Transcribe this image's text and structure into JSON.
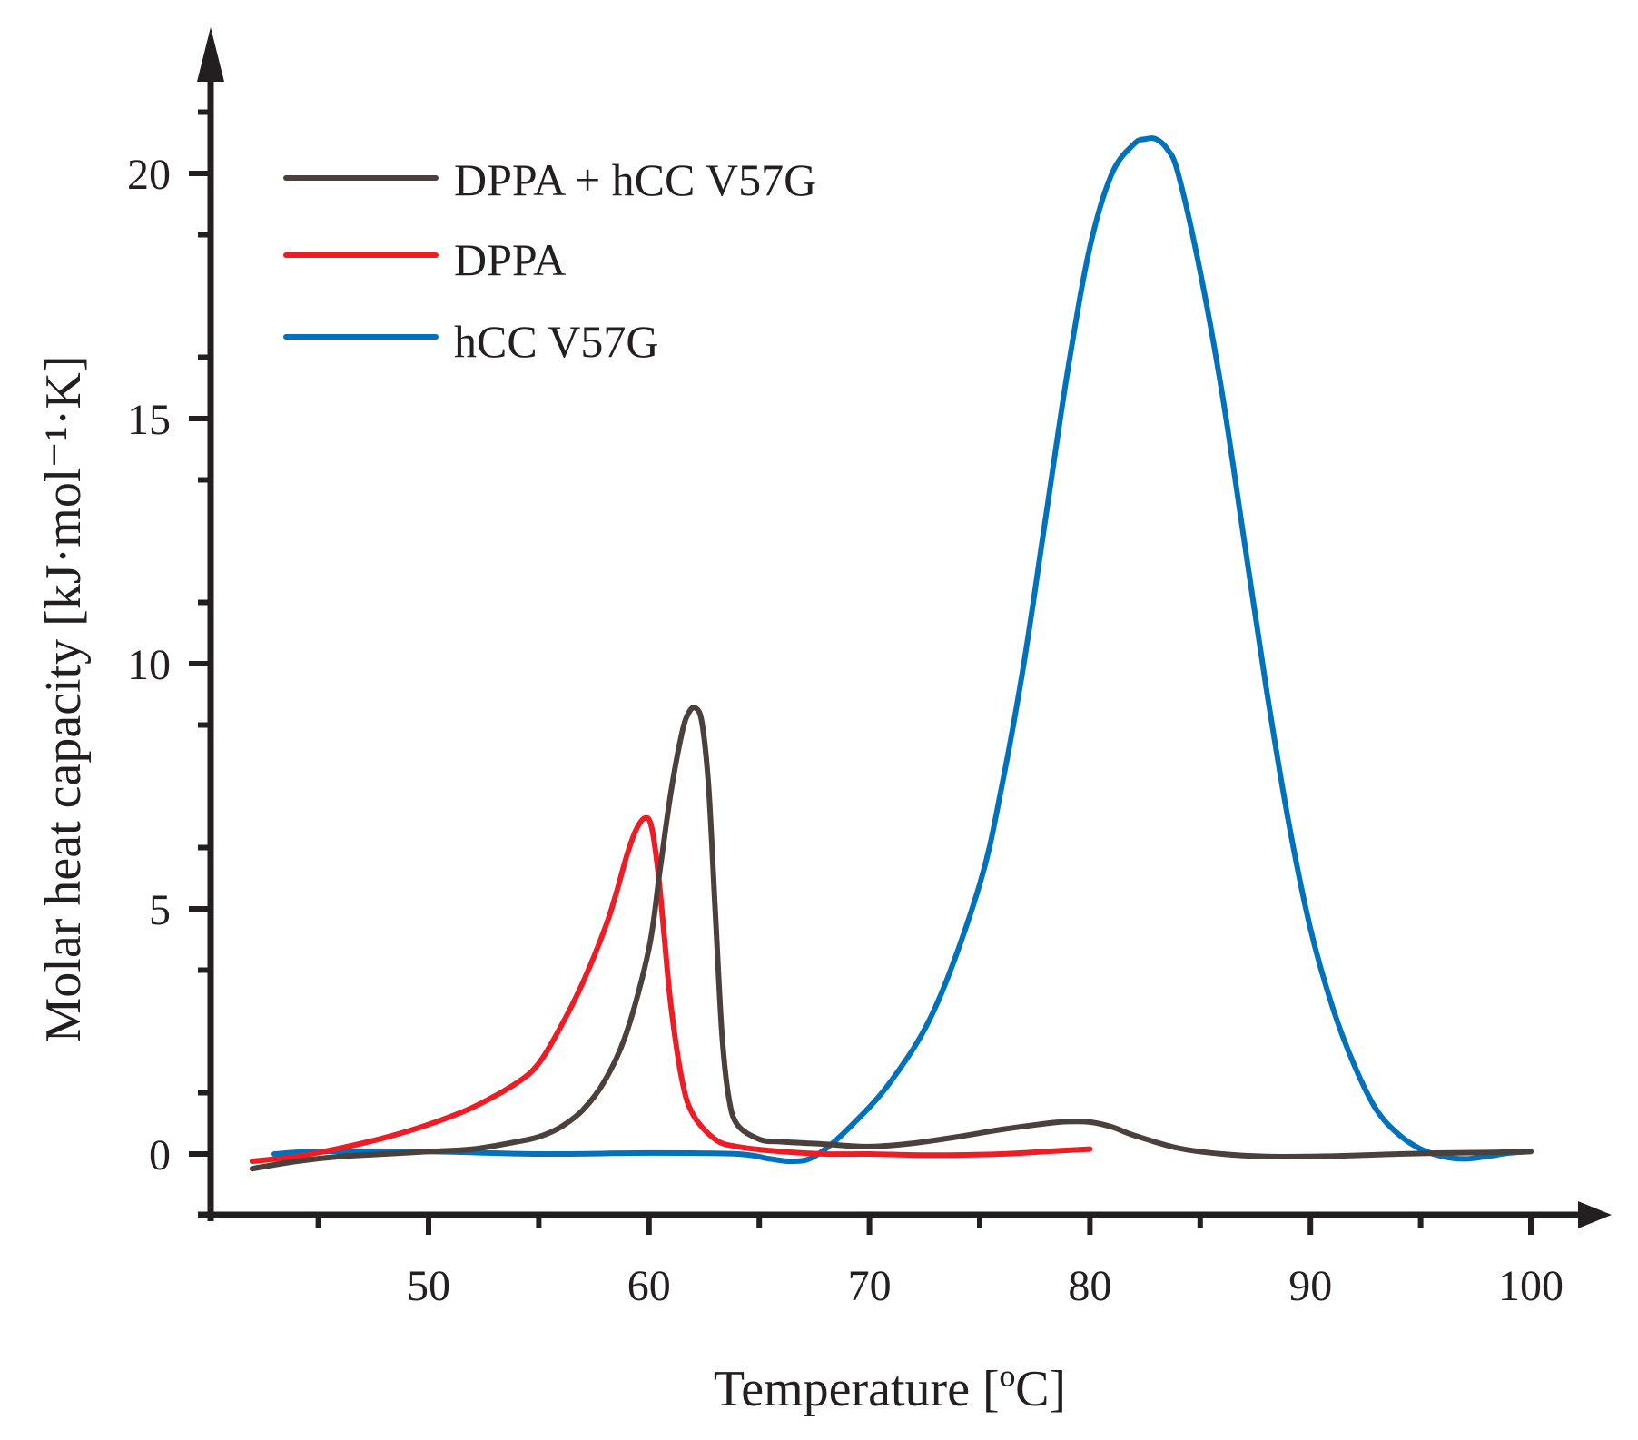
{
  "chart_data": {
    "type": "line",
    "title": "",
    "xlabel": "Temperature [ºC]",
    "ylabel": "Molar heat capacity [kJ·mol⁻¹·K]",
    "xlim": [
      40,
      103
    ],
    "ylim": [
      -1.3,
      23
    ],
    "x_ticks": [
      50,
      60,
      70,
      80,
      90,
      100
    ],
    "y_ticks": [
      0,
      5,
      10,
      15,
      20
    ],
    "x_minor_step": 5,
    "y_minor_step": 2.5,
    "legend_position": "top-left",
    "series": [
      {
        "name": "DPPA + hCC V57G",
        "color": "#4a403c",
        "x": [
          42,
          44,
          46,
          48,
          50,
          52,
          54,
          55,
          56,
          57,
          58,
          59,
          60,
          60.5,
          61,
          61.5,
          61.8,
          62.1,
          62.4,
          62.7,
          63,
          63.3,
          63.6,
          64,
          65,
          66,
          68,
          70,
          72,
          74,
          76,
          78,
          79,
          80,
          81,
          82,
          84,
          86,
          88,
          90,
          92,
          94,
          96,
          98,
          100
        ],
        "y": [
          -0.3,
          -0.15,
          -0.05,
          0.0,
          0.05,
          0.1,
          0.25,
          0.35,
          0.55,
          0.9,
          1.5,
          2.5,
          4.2,
          5.8,
          7.4,
          8.6,
          9.0,
          9.1,
          8.8,
          7.5,
          5.0,
          2.5,
          1.2,
          0.6,
          0.3,
          0.25,
          0.2,
          0.15,
          0.22,
          0.35,
          0.5,
          0.62,
          0.66,
          0.65,
          0.55,
          0.38,
          0.12,
          0.0,
          -0.05,
          -0.05,
          -0.03,
          0.0,
          0.02,
          0.03,
          0.05
        ]
      },
      {
        "name": "DPPA",
        "color": "#ee1c24",
        "x": [
          42,
          44,
          46,
          48,
          50,
          52,
          54,
          55,
          56,
          57,
          58,
          58.5,
          59,
          59.4,
          59.8,
          60.1,
          60.4,
          60.7,
          61,
          61.5,
          62,
          63,
          64,
          66,
          68,
          70,
          72,
          74,
          76,
          78,
          80
        ],
        "y": [
          -0.15,
          -0.05,
          0.12,
          0.33,
          0.6,
          0.95,
          1.45,
          1.85,
          2.6,
          3.5,
          4.6,
          5.3,
          6.1,
          6.6,
          6.85,
          6.7,
          5.8,
          4.4,
          3.0,
          1.5,
          0.8,
          0.3,
          0.15,
          0.05,
          0.0,
          0.0,
          -0.02,
          -0.02,
          0.0,
          0.05,
          0.1
        ]
      },
      {
        "name": "hCC V57G",
        "color": "#0072bc",
        "x": [
          43,
          45,
          50,
          55,
          60,
          64,
          65.5,
          66.5,
          67.5,
          69,
          71,
          73,
          75,
          76,
          77,
          78,
          79,
          80,
          81,
          82,
          82.5,
          83,
          83.5,
          84,
          85,
          86,
          87,
          88,
          89,
          90,
          91,
          92,
          93,
          94,
          95,
          96,
          97,
          98,
          99,
          100
        ],
        "y": [
          0.0,
          0.05,
          0.05,
          0.0,
          0.02,
          0.0,
          -0.1,
          -0.15,
          -0.05,
          0.5,
          1.5,
          3.0,
          5.5,
          7.5,
          10.0,
          13.0,
          16.0,
          18.5,
          20.0,
          20.6,
          20.7,
          20.7,
          20.5,
          20.0,
          18.0,
          15.5,
          12.5,
          9.5,
          6.8,
          4.6,
          3.0,
          1.8,
          0.9,
          0.4,
          0.1,
          -0.05,
          -0.1,
          -0.05,
          0.02,
          0.05
        ]
      }
    ]
  }
}
